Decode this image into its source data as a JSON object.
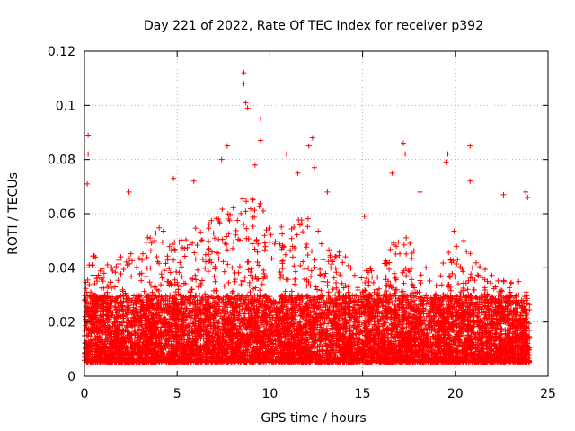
{
  "chart_data": {
    "type": "scatter",
    "title": "Day 221 of 2022, Rate Of TEC Index for receiver p392",
    "xlabel": "GPS time / hours",
    "ylabel": "ROTI / TECUs",
    "xlim": [
      0,
      25
    ],
    "ylim": [
      0,
      0.12
    ],
    "xticks": [
      0,
      5,
      10,
      15,
      20,
      25
    ],
    "xtick_labels": [
      "0",
      "5",
      "10",
      "15",
      "20",
      "25"
    ],
    "yticks": [
      0,
      0.02,
      0.04,
      0.06,
      0.08,
      0.1,
      0.12
    ],
    "ytick_labels": [
      "0",
      "0.02",
      "0.04",
      "0.06",
      "0.08",
      "0.1",
      "0.12"
    ],
    "grid": true,
    "marker": "+",
    "color": "#ff0000",
    "x_range_of_data": [
      0,
      24
    ],
    "baseline_band": [
      0.005,
      0.03
    ],
    "series": [
      {
        "name": "ROTI",
        "notable_points": [
          {
            "x": 0.2,
            "y": 0.089
          },
          {
            "x": 0.2,
            "y": 0.082
          },
          {
            "x": 0.15,
            "y": 0.071
          },
          {
            "x": 2.4,
            "y": 0.068
          },
          {
            "x": 4.8,
            "y": 0.073
          },
          {
            "x": 5.9,
            "y": 0.072
          },
          {
            "x": 7.4,
            "y": 0.08
          },
          {
            "x": 7.7,
            "y": 0.085
          },
          {
            "x": 8.6,
            "y": 0.112
          },
          {
            "x": 8.6,
            "y": 0.108
          },
          {
            "x": 8.7,
            "y": 0.101
          },
          {
            "x": 8.8,
            "y": 0.099
          },
          {
            "x": 9.2,
            "y": 0.078
          },
          {
            "x": 9.5,
            "y": 0.095
          },
          {
            "x": 9.5,
            "y": 0.087
          },
          {
            "x": 10.9,
            "y": 0.082
          },
          {
            "x": 11.5,
            "y": 0.075
          },
          {
            "x": 12.1,
            "y": 0.085
          },
          {
            "x": 12.3,
            "y": 0.088
          },
          {
            "x": 12.4,
            "y": 0.077
          },
          {
            "x": 13.1,
            "y": 0.068
          },
          {
            "x": 15.1,
            "y": 0.059
          },
          {
            "x": 16.6,
            "y": 0.075
          },
          {
            "x": 17.2,
            "y": 0.086
          },
          {
            "x": 17.3,
            "y": 0.082
          },
          {
            "x": 18.1,
            "y": 0.068
          },
          {
            "x": 19.5,
            "y": 0.079
          },
          {
            "x": 19.6,
            "y": 0.082
          },
          {
            "x": 20.8,
            "y": 0.085
          },
          {
            "x": 20.8,
            "y": 0.072
          },
          {
            "x": 22.6,
            "y": 0.067
          },
          {
            "x": 23.8,
            "y": 0.068
          },
          {
            "x": 23.9,
            "y": 0.066
          }
        ]
      }
    ],
    "activity_profile": [
      {
        "x": 0,
        "peak": 0.05
      },
      {
        "x": 1,
        "peak": 0.04
      },
      {
        "x": 2,
        "peak": 0.045
      },
      {
        "x": 3,
        "peak": 0.05
      },
      {
        "x": 4,
        "peak": 0.055
      },
      {
        "x": 5,
        "peak": 0.05
      },
      {
        "x": 6,
        "peak": 0.055
      },
      {
        "x": 7,
        "peak": 0.06
      },
      {
        "x": 8,
        "peak": 0.065
      },
      {
        "x": 9,
        "peak": 0.07
      },
      {
        "x": 10,
        "peak": 0.06
      },
      {
        "x": 11,
        "peak": 0.055
      },
      {
        "x": 12,
        "peak": 0.06
      },
      {
        "x": 13,
        "peak": 0.05
      },
      {
        "x": 14,
        "peak": 0.045
      },
      {
        "x": 15,
        "peak": 0.04
      },
      {
        "x": 16,
        "peak": 0.04
      },
      {
        "x": 17,
        "peak": 0.055
      },
      {
        "x": 18,
        "peak": 0.045
      },
      {
        "x": 19,
        "peak": 0.035
      },
      {
        "x": 20,
        "peak": 0.055
      },
      {
        "x": 21,
        "peak": 0.045
      },
      {
        "x": 22,
        "peak": 0.04
      },
      {
        "x": 23,
        "peak": 0.035
      },
      {
        "x": 24,
        "peak": 0.035
      }
    ]
  }
}
